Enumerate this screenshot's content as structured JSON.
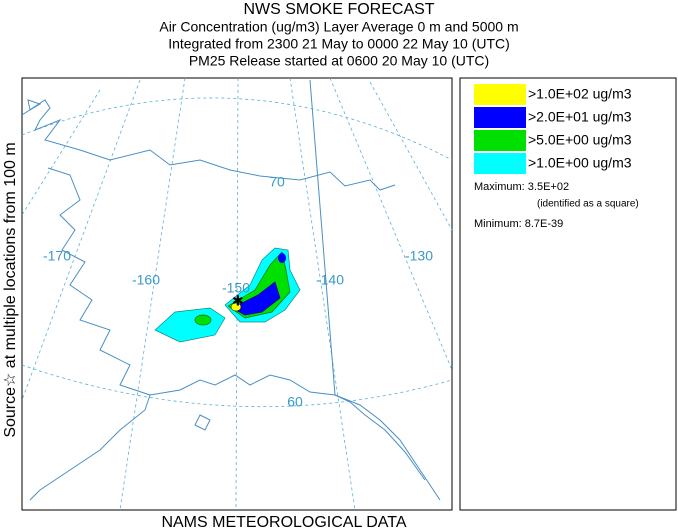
{
  "header": {
    "title": "NWS SMOKE FORECAST",
    "lines": [
      "Air Concentration (ug/m3) Layer Average    0 m and  5000 m",
      "Integrated from 2300 21 May to 0000 22 May 10 (UTC)",
      "PM25 Release started at 0600 20 May 10 (UTC)"
    ]
  },
  "side_label": "Source☆ at multiple locations from 100 m",
  "footer": "NAMS METEOROLOGICAL DATA",
  "map": {
    "graticule_labels": [
      "70",
      "-170",
      "-160",
      "-150",
      "-140",
      "-130",
      "60"
    ]
  },
  "legend": {
    "entries": [
      {
        "label": ">1.0E+02 ug/m3",
        "color": "#ffff00"
      },
      {
        "label": ">2.0E+01 ug/m3",
        "color": "#0000ff"
      },
      {
        "label": ">5.0E+00 ug/m3",
        "color": "#00e000"
      },
      {
        "label": ">1.0E+00 ug/m3",
        "color": "#00ffff"
      }
    ],
    "maximum": "Maximum: 3.5E+02",
    "maximum_note": "(identified as a square)",
    "minimum": "Minimum: 8.7E-39"
  }
}
